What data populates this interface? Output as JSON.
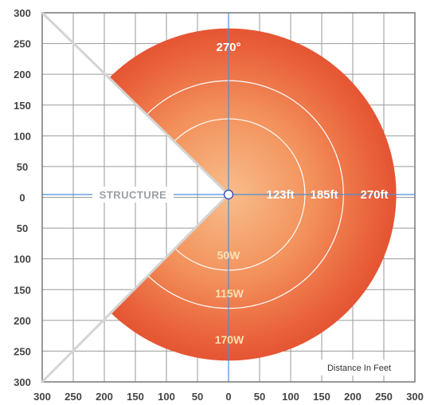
{
  "diagram": {
    "structure_label": "STRUCTURE",
    "angle_label": "270°",
    "distance_caption": "Distance In Feet",
    "y_ticks": [
      "300",
      "250",
      "200",
      "150",
      "100",
      "50",
      "0",
      "50",
      "100",
      "150",
      "200",
      "250",
      "300"
    ],
    "x_ticks": [
      "300",
      "250",
      "200",
      "150",
      "100",
      "50",
      "0",
      "50",
      "100",
      "150",
      "200",
      "250",
      "300"
    ],
    "rings": [
      {
        "distance_ft": 123,
        "distance_label": "123ft",
        "watt_label": "50W"
      },
      {
        "distance_ft": 185,
        "distance_label": "185ft",
        "watt_label": "115W"
      },
      {
        "distance_ft": 270,
        "distance_label": "270ft",
        "watt_label": "170W"
      }
    ],
    "coverage_angle_deg": 270,
    "colors": {
      "outer": "#e4472b",
      "inner_glow": "#f8b27d",
      "grid": "#9a9a9a",
      "axis": "#4a90d9",
      "ring_line": "#ffffff"
    }
  }
}
